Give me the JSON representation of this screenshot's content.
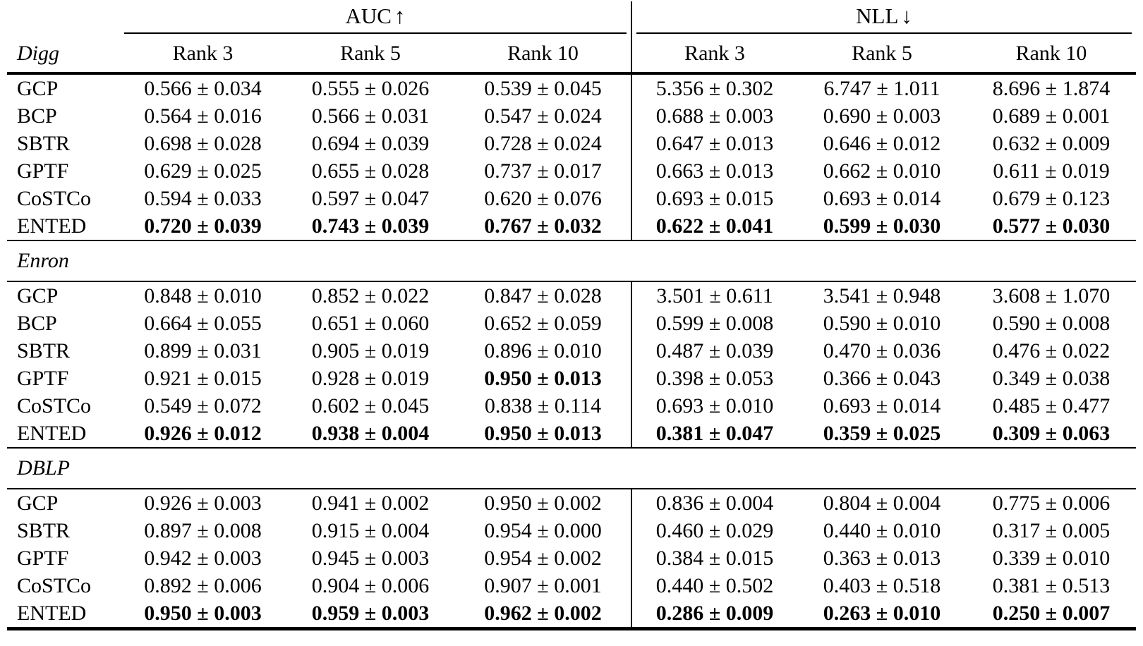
{
  "header": {
    "metric_groups": [
      {
        "label": "AUC",
        "arrow": "↑"
      },
      {
        "label": "NLL",
        "arrow": "↓"
      }
    ],
    "rank_labels": [
      "Rank 3",
      "Rank 5",
      "Rank 10"
    ]
  },
  "sections": [
    {
      "dataset": "Digg",
      "rows": [
        {
          "method": "GCP",
          "values": [
            "0.566 ± 0.034",
            "0.555 ± 0.026",
            "0.539 ± 0.045",
            "5.356 ± 0.302",
            "6.747 ± 1.011",
            "8.696 ± 1.874"
          ],
          "bold": [
            false,
            false,
            false,
            false,
            false,
            false
          ]
        },
        {
          "method": "BCP",
          "values": [
            "0.564 ± 0.016",
            "0.566 ± 0.031",
            "0.547 ± 0.024",
            "0.688 ± 0.003",
            "0.690 ± 0.003",
            "0.689 ± 0.001"
          ],
          "bold": [
            false,
            false,
            false,
            false,
            false,
            false
          ]
        },
        {
          "method": "SBTR",
          "values": [
            "0.698 ± 0.028",
            "0.694 ± 0.039",
            "0.728 ± 0.024",
            "0.647 ± 0.013",
            "0.646 ± 0.012",
            "0.632 ± 0.009"
          ],
          "bold": [
            false,
            false,
            false,
            false,
            false,
            false
          ]
        },
        {
          "method": "GPTF",
          "values": [
            "0.629 ± 0.025",
            "0.655 ± 0.028",
            "0.737 ± 0.017",
            "0.663 ± 0.013",
            "0.662 ± 0.010",
            "0.611 ± 0.019"
          ],
          "bold": [
            false,
            false,
            false,
            false,
            false,
            false
          ]
        },
        {
          "method": "CoSTCo",
          "values": [
            "0.594 ± 0.033",
            "0.597 ± 0.047",
            "0.620 ± 0.076",
            "0.693 ± 0.015",
            "0.693 ± 0.014",
            "0.679 ± 0.123"
          ],
          "bold": [
            false,
            false,
            false,
            false,
            false,
            false
          ]
        },
        {
          "method": "ENTED",
          "values": [
            "0.720 ± 0.039",
            "0.743 ± 0.039",
            "0.767 ± 0.032",
            "0.622 ± 0.041",
            "0.599 ± 0.030",
            "0.577 ± 0.030"
          ],
          "bold": [
            true,
            true,
            true,
            true,
            true,
            true
          ]
        }
      ]
    },
    {
      "dataset": "Enron",
      "rows": [
        {
          "method": "GCP",
          "values": [
            "0.848 ± 0.010",
            "0.852 ± 0.022",
            "0.847 ± 0.028",
            "3.501 ± 0.611",
            "3.541 ± 0.948",
            "3.608 ± 1.070"
          ],
          "bold": [
            false,
            false,
            false,
            false,
            false,
            false
          ]
        },
        {
          "method": "BCP",
          "values": [
            "0.664 ± 0.055",
            "0.651 ± 0.060",
            "0.652 ± 0.059",
            "0.599 ± 0.008",
            "0.590 ± 0.010",
            "0.590 ± 0.008"
          ],
          "bold": [
            false,
            false,
            false,
            false,
            false,
            false
          ]
        },
        {
          "method": "SBTR",
          "values": [
            "0.899 ± 0.031",
            "0.905 ± 0.019",
            "0.896 ± 0.010",
            "0.487 ± 0.039",
            "0.470 ± 0.036",
            "0.476 ± 0.022"
          ],
          "bold": [
            false,
            false,
            false,
            false,
            false,
            false
          ]
        },
        {
          "method": "GPTF",
          "values": [
            "0.921 ± 0.015",
            "0.928 ± 0.019",
            "0.950 ± 0.013",
            "0.398 ± 0.053",
            "0.366 ± 0.043",
            "0.349 ± 0.038"
          ],
          "bold": [
            false,
            false,
            true,
            false,
            false,
            false
          ]
        },
        {
          "method": "CoSTCo",
          "values": [
            "0.549 ± 0.072",
            "0.602 ± 0.045",
            "0.838 ± 0.114",
            "0.693 ± 0.010",
            "0.693 ± 0.014",
            "0.485 ± 0.477"
          ],
          "bold": [
            false,
            false,
            false,
            false,
            false,
            false
          ]
        },
        {
          "method": "ENTED",
          "values": [
            "0.926 ± 0.012",
            "0.938 ± 0.004",
            "0.950 ± 0.013",
            "0.381 ± 0.047",
            "0.359 ± 0.025",
            "0.309 ± 0.063"
          ],
          "bold": [
            true,
            true,
            true,
            true,
            true,
            true
          ]
        }
      ]
    },
    {
      "dataset": "DBLP",
      "rows": [
        {
          "method": "GCP",
          "values": [
            "0.926 ± 0.003",
            "0.941 ± 0.002",
            "0.950 ± 0.002",
            "0.836 ± 0.004",
            "0.804 ± 0.004",
            "0.775 ± 0.006"
          ],
          "bold": [
            false,
            false,
            false,
            false,
            false,
            false
          ]
        },
        {
          "method": "SBTR",
          "values": [
            "0.897 ± 0.008",
            "0.915 ± 0.004",
            "0.954 ± 0.000",
            "0.460 ± 0.029",
            "0.440 ± 0.010",
            "0.317 ± 0.005"
          ],
          "bold": [
            false,
            false,
            false,
            false,
            false,
            false
          ]
        },
        {
          "method": "GPTF",
          "values": [
            "0.942 ± 0.003",
            "0.945 ± 0.003",
            "0.954 ± 0.002",
            "0.384 ± 0.015",
            "0.363 ± 0.013",
            "0.339 ± 0.010"
          ],
          "bold": [
            false,
            false,
            false,
            false,
            false,
            false
          ]
        },
        {
          "method": "CoSTCo",
          "values": [
            "0.892 ± 0.006",
            "0.904 ± 0.006",
            "0.907 ± 0.001",
            "0.440 ± 0.502",
            "0.403 ± 0.518",
            "0.381 ± 0.513"
          ],
          "bold": [
            false,
            false,
            false,
            false,
            false,
            false
          ]
        },
        {
          "method": "ENTED",
          "values": [
            "0.950 ± 0.003",
            "0.959 ± 0.003",
            "0.962 ± 0.002",
            "0.286 ± 0.009",
            "0.263 ± 0.010",
            "0.250 ± 0.007"
          ],
          "bold": [
            true,
            true,
            true,
            true,
            true,
            true
          ]
        }
      ]
    }
  ]
}
